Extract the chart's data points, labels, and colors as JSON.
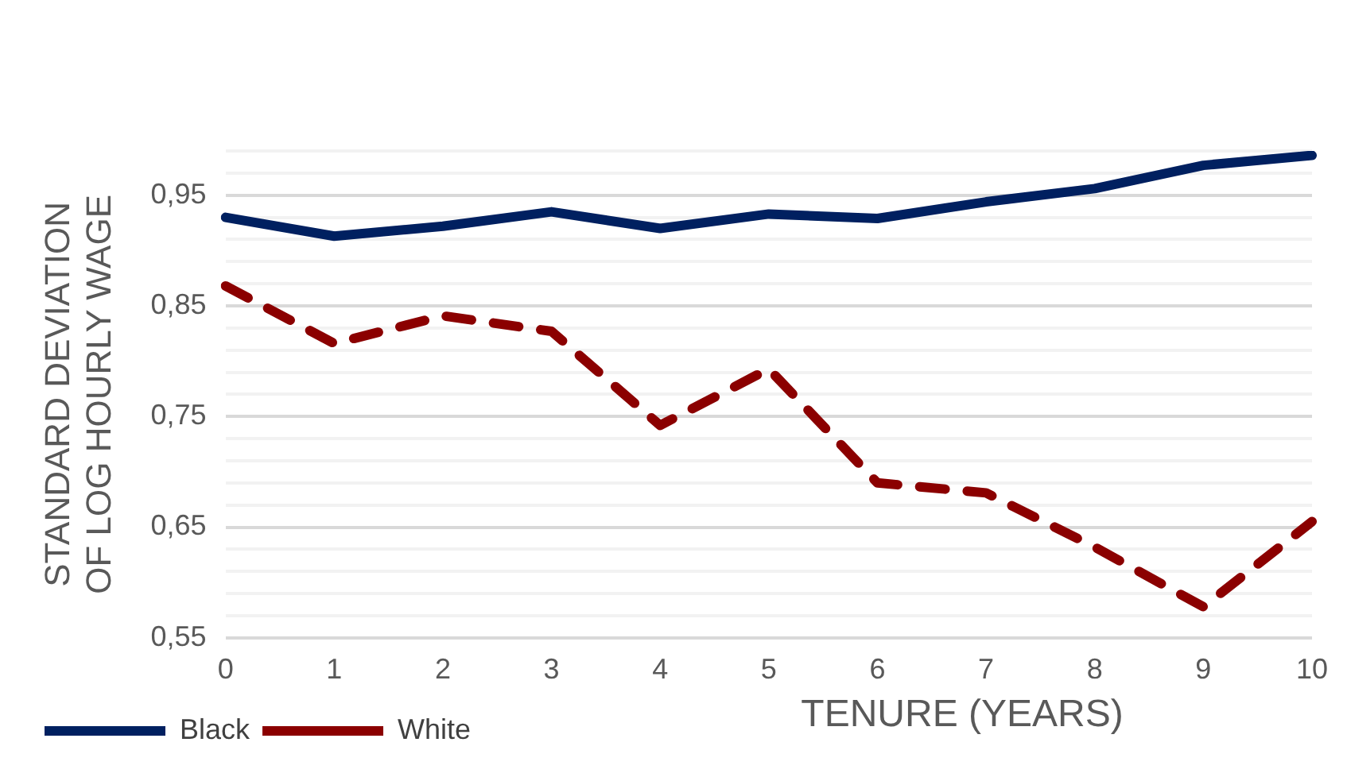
{
  "chart_data": {
    "type": "line",
    "categories": [
      "0",
      "1",
      "2",
      "3",
      "4",
      "5",
      "6",
      "7",
      "8",
      "9",
      "10"
    ],
    "series": [
      {
        "name": "Black",
        "color": "#002060",
        "line_style": "solid",
        "values": [
          0.93,
          0.913,
          0.922,
          0.935,
          0.92,
          0.933,
          0.929,
          0.944,
          0.956,
          0.977,
          0.986
        ]
      },
      {
        "name": "White",
        "color": "#8b0000",
        "line_style": "dashed",
        "values": [
          0.868,
          0.816,
          0.841,
          0.827,
          0.742,
          0.793,
          0.69,
          0.681,
          0.632,
          0.578,
          0.655
        ]
      }
    ],
    "xlabel": "TENURE (YEARS)",
    "ylabel": "STANDARD DEVIATION OF LOG HOURLY WAGE",
    "ylim": [
      0.55,
      0.99
    ],
    "yticks": [
      {
        "value": 0.55,
        "label": "0,55"
      },
      {
        "value": 0.57,
        "label": null
      },
      {
        "value": 0.59,
        "label": null
      },
      {
        "value": 0.61,
        "label": null
      },
      {
        "value": 0.63,
        "label": null
      },
      {
        "value": 0.65,
        "label": "0,65"
      },
      {
        "value": 0.67,
        "label": null
      },
      {
        "value": 0.69,
        "label": null
      },
      {
        "value": 0.71,
        "label": null
      },
      {
        "value": 0.73,
        "label": null
      },
      {
        "value": 0.75,
        "label": "0,75"
      },
      {
        "value": 0.77,
        "label": null
      },
      {
        "value": 0.79,
        "label": null
      },
      {
        "value": 0.81,
        "label": null
      },
      {
        "value": 0.83,
        "label": null
      },
      {
        "value": 0.85,
        "label": "0,85"
      },
      {
        "value": 0.87,
        "label": null
      },
      {
        "value": 0.89,
        "label": null
      },
      {
        "value": 0.91,
        "label": null
      },
      {
        "value": 0.93,
        "label": null
      },
      {
        "value": 0.95,
        "label": "0,95"
      },
      {
        "value": 0.97,
        "label": null
      },
      {
        "value": 0.99,
        "label": null
      }
    ],
    "grid": "y",
    "legend": "bottom left",
    "marker": "none"
  }
}
